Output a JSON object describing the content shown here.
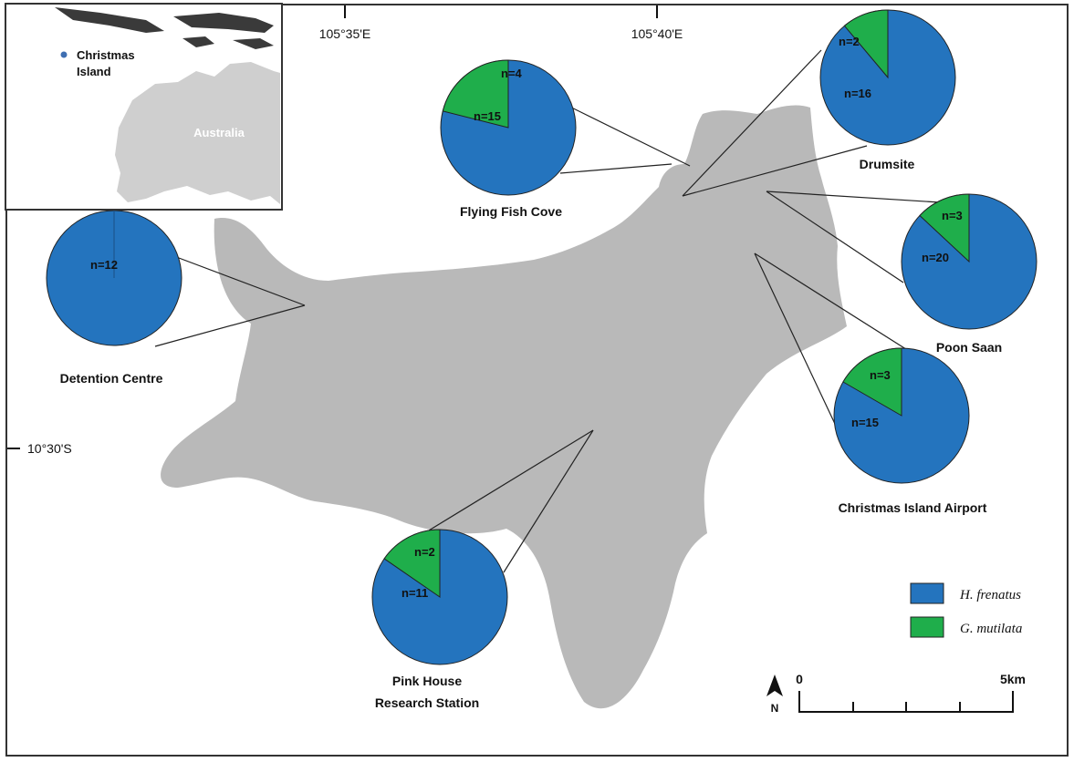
{
  "colors": {
    "h_frenatus": "#2474be",
    "g_mutilata": "#1fae4b",
    "island": "#b9b9b9",
    "inset_land": "#cfcfcf",
    "inset_dark": "#3a3a3a",
    "dot": "#3f6fb2"
  },
  "graticule": {
    "lon_1": "105°35'E",
    "lon_2": "105°40'E",
    "lat_1": "10°30'S"
  },
  "inset": {
    "point_label_line1": "Christmas",
    "point_label_line2": "Island",
    "country_label": "Australia"
  },
  "legend": {
    "items": [
      {
        "name": "H. frenatus"
      },
      {
        "name": "G. mutilata"
      }
    ]
  },
  "scale_bar": {
    "start_label": "0",
    "end_label": "5km"
  },
  "north_arrow": {
    "label": "N"
  },
  "sites": [
    {
      "name_line1": "Flying Fish Cove",
      "name_line2": "",
      "h_frenatus": 15,
      "g_mutilata": 4,
      "h_label": "n=15",
      "g_label": "n=4"
    },
    {
      "name_line1": "Drumsite",
      "name_line2": "",
      "h_frenatus": 16,
      "g_mutilata": 2,
      "h_label": "n=16",
      "g_label": "n=2"
    },
    {
      "name_line1": "Poon Saan",
      "name_line2": "",
      "h_frenatus": 20,
      "g_mutilata": 3,
      "h_label": "n=20",
      "g_label": "n=3"
    },
    {
      "name_line1": "Christmas Island Airport",
      "name_line2": "",
      "h_frenatus": 15,
      "g_mutilata": 3,
      "h_label": "n=15",
      "g_label": "n=3"
    },
    {
      "name_line1": "Detention Centre",
      "name_line2": "",
      "h_frenatus": 12,
      "g_mutilata": 0,
      "h_label": "n=12",
      "g_label": ""
    },
    {
      "name_line1": "Pink House",
      "name_line2": "Research Station",
      "h_frenatus": 11,
      "g_mutilata": 2,
      "h_label": "n=11",
      "g_label": "n=2"
    }
  ]
}
